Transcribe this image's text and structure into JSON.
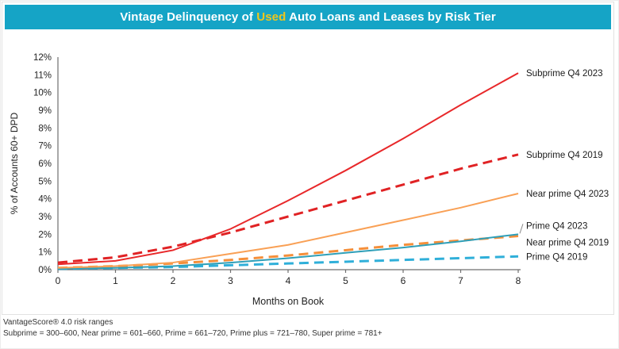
{
  "title": {
    "prefix": "Vintage Delinquency of ",
    "highlight": "Used",
    "suffix": " Auto Loans and Leases by Risk Tier"
  },
  "colors": {
    "title_bar_bg": "#15a4c6",
    "title_highlight": "#efc61c",
    "subprime_red": "#e8282a",
    "near_prime_orange": "#f79447",
    "prime_2023_teal": "#2f9fb8",
    "prime_2019_blue": "#2fafd9",
    "axis": "#6f6f6f",
    "text": "#222222"
  },
  "chart_data": {
    "type": "line",
    "x": [
      0,
      1,
      2,
      3,
      4,
      5,
      6,
      7,
      8
    ],
    "xlabel": "Months on Book",
    "ylabel": "% of Accounts 60+ DPD",
    "ylim": [
      0,
      12
    ],
    "ytick_step": 1,
    "ytick_suffix": "%",
    "grid": false,
    "legend_position": "right-of-line-ends",
    "series": [
      {
        "name": "Subprime Q4 2023",
        "color": "#e8282a",
        "style": "solid",
        "label_dy": 0,
        "leader": false,
        "values": [
          0.3,
          0.5,
          1.1,
          2.3,
          3.9,
          5.6,
          7.4,
          9.3,
          11.1
        ]
      },
      {
        "name": "Subprime Q4 2019",
        "color": "#e02224",
        "style": "dashed",
        "label_dy": 0,
        "leader": false,
        "values": [
          0.4,
          0.7,
          1.3,
          2.1,
          3.0,
          3.9,
          4.8,
          5.7,
          6.5
        ]
      },
      {
        "name": "Near prime Q4 2023",
        "color": "#f9a055",
        "style": "solid",
        "label_dy": 0,
        "leader": false,
        "values": [
          0.1,
          0.2,
          0.4,
          0.9,
          1.4,
          2.1,
          2.8,
          3.5,
          4.3
        ]
      },
      {
        "name": "Prime Q4 2023",
        "color": "#2f9fb8",
        "style": "solid",
        "label_dy": -11,
        "leader": true,
        "values": [
          0.05,
          0.1,
          0.2,
          0.4,
          0.65,
          0.95,
          1.25,
          1.6,
          2.0
        ]
      },
      {
        "name": "Near prime Q4 2019",
        "color": "#f58f3a",
        "style": "dashed",
        "label_dy": 8,
        "leader": false,
        "values": [
          0.1,
          0.2,
          0.35,
          0.55,
          0.8,
          1.1,
          1.4,
          1.65,
          1.9
        ]
      },
      {
        "name": "Prime Q4 2019",
        "color": "#2fafd9",
        "style": "dashed",
        "label_dy": 0,
        "leader": false,
        "values": [
          0.05,
          0.1,
          0.15,
          0.25,
          0.35,
          0.45,
          0.55,
          0.65,
          0.75
        ]
      }
    ]
  },
  "footnotes": {
    "line1": "VantageScore® 4.0 risk ranges",
    "line2": "Subprime = 300–600, Near prime = 601–660, Prime = 661–720, Prime plus = 721–780, Super prime = 781+"
  }
}
